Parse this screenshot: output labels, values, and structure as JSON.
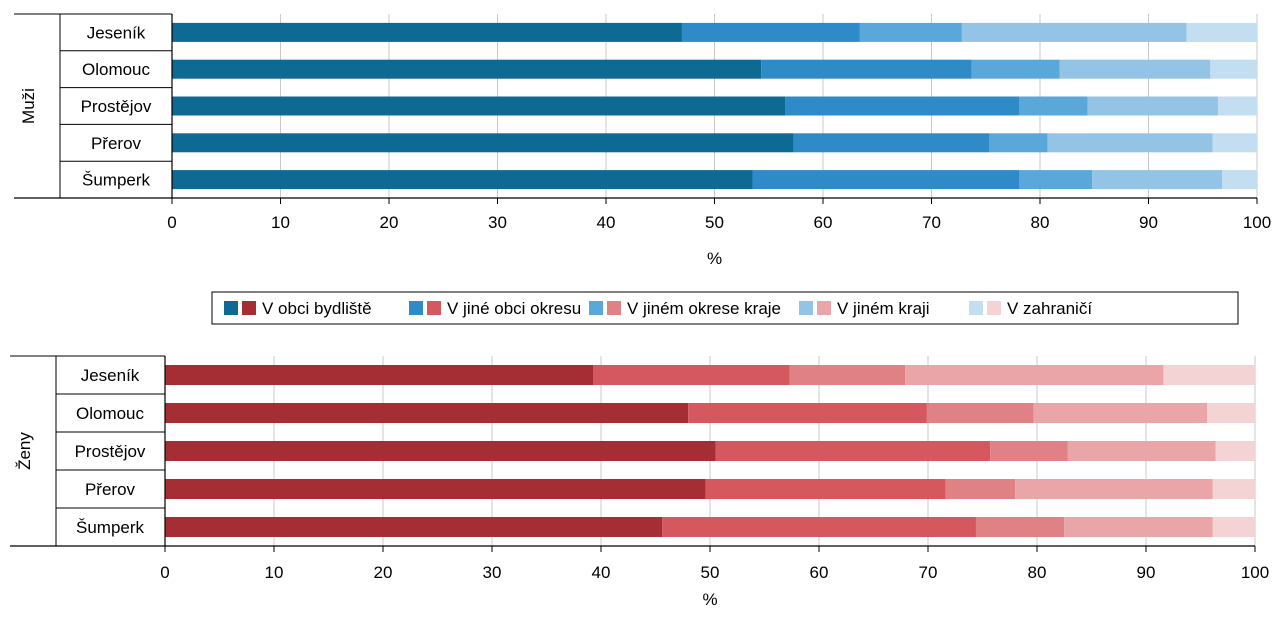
{
  "legend": {
    "entries": [
      "V obci bydliště",
      "V jiné obci okresu",
      "V jiném okrese kraje",
      "V jiném kraji",
      "V zahraničí"
    ]
  },
  "chart_data": [
    {
      "type": "bar",
      "orientation": "horizontal",
      "stacked": true,
      "group_label": "Muži",
      "xlabel": "%",
      "xlim": [
        0,
        100
      ],
      "xticks": [
        0,
        10,
        20,
        30,
        40,
        50,
        60,
        70,
        80,
        90,
        100
      ],
      "grid": true,
      "categories": [
        "Jeseník",
        "Olomouc",
        "Prostějov",
        "Přerov",
        "Šumperk"
      ],
      "series": [
        {
          "name": "V obci bydliště",
          "values": [
            47.0,
            54.3,
            56.5,
            57.3,
            53.5
          ],
          "color": "#0e6a93"
        },
        {
          "name": "V jiné obci okresu",
          "values": [
            16.4,
            19.4,
            21.6,
            18.0,
            24.6
          ],
          "color": "#2e8bc8"
        },
        {
          "name": "V jiném okrese kraje",
          "values": [
            9.4,
            8.1,
            6.3,
            5.4,
            6.7
          ],
          "color": "#5aa7d9"
        },
        {
          "name": "V jiném kraji",
          "values": [
            20.7,
            13.9,
            12.0,
            15.2,
            12.0
          ],
          "color": "#93c4e6"
        },
        {
          "name": "V zahraničí",
          "values": [
            6.5,
            4.3,
            3.6,
            4.1,
            3.2
          ],
          "color": "#c3def1"
        }
      ]
    },
    {
      "type": "bar",
      "orientation": "horizontal",
      "stacked": true,
      "group_label": "Ženy",
      "xlabel": "%",
      "xlim": [
        0,
        100
      ],
      "xticks": [
        0,
        10,
        20,
        30,
        40,
        50,
        60,
        70,
        80,
        90,
        100
      ],
      "grid": true,
      "categories": [
        "Jeseník",
        "Olomouc",
        "Prostějov",
        "Přerov",
        "Šumperk"
      ],
      "series": [
        {
          "name": "V obci bydliště",
          "values": [
            39.3,
            48.0,
            50.5,
            49.6,
            45.6
          ],
          "color": "#a52d34"
        },
        {
          "name": "V jiné obci okresu",
          "values": [
            18.0,
            21.9,
            25.2,
            22.0,
            28.8
          ],
          "color": "#d4585d"
        },
        {
          "name": "V jiném okrese kraje",
          "values": [
            10.6,
            9.8,
            7.1,
            6.4,
            8.1
          ],
          "color": "#df8185"
        },
        {
          "name": "V jiném kraji",
          "values": [
            23.7,
            15.9,
            13.6,
            18.1,
            13.6
          ],
          "color": "#e9a5a8"
        },
        {
          "name": "V zahraničí",
          "values": [
            8.4,
            4.4,
            3.6,
            3.9,
            3.9
          ],
          "color": "#f4d3d5"
        }
      ]
    }
  ]
}
